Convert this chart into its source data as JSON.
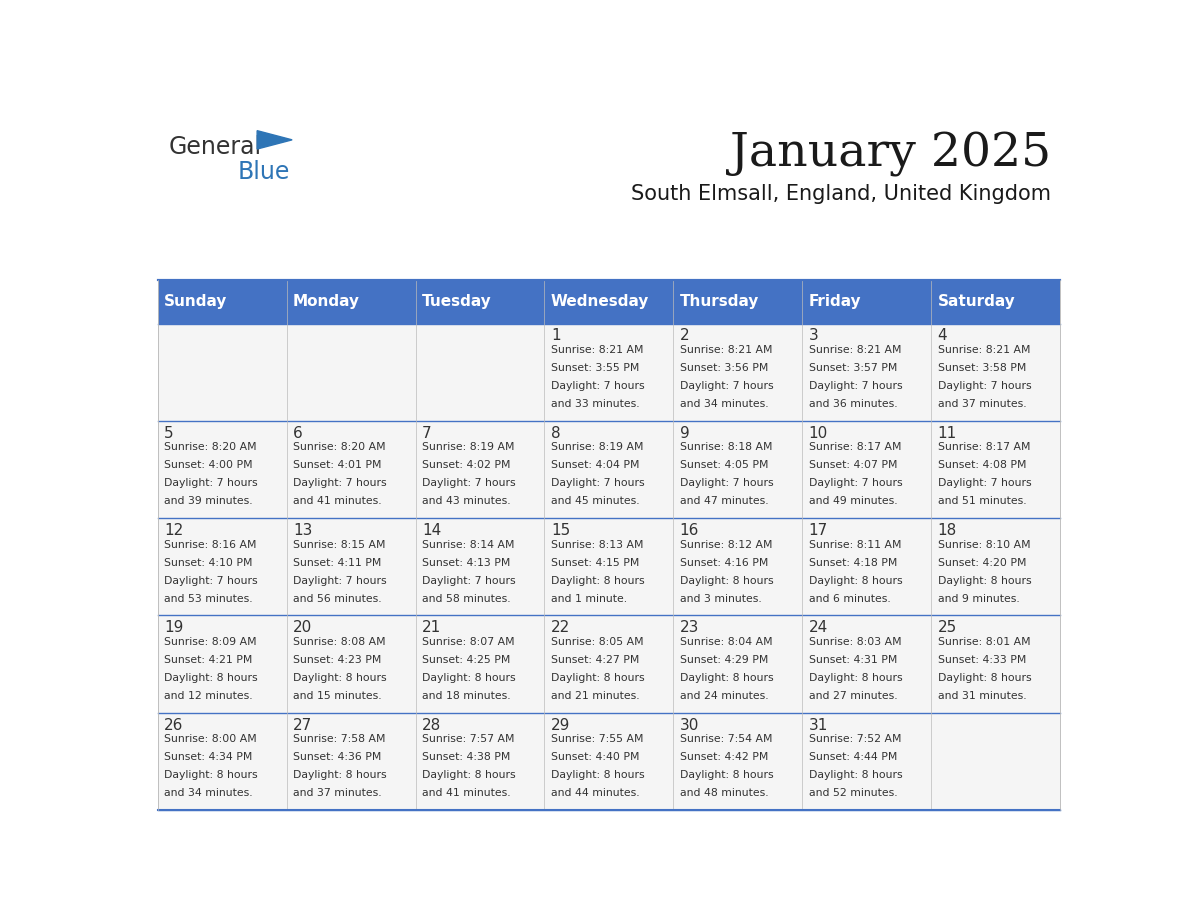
{
  "title": "January 2025",
  "subtitle": "South Elmsall, England, United Kingdom",
  "days_of_week": [
    "Sunday",
    "Monday",
    "Tuesday",
    "Wednesday",
    "Thursday",
    "Friday",
    "Saturday"
  ],
  "header_bg": "#4472C4",
  "header_text": "#FFFFFF",
  "cell_bg": "#F5F5F5",
  "text_color": "#333333",
  "border_color": "#4472C4",
  "logo_general_color": "#333333",
  "logo_blue_color": "#2E75B6",
  "weeks": [
    [
      {
        "day": null,
        "sunrise": null,
        "sunset": null,
        "daylight": null
      },
      {
        "day": null,
        "sunrise": null,
        "sunset": null,
        "daylight": null
      },
      {
        "day": null,
        "sunrise": null,
        "sunset": null,
        "daylight": null
      },
      {
        "day": 1,
        "sunrise": "8:21 AM",
        "sunset": "3:55 PM",
        "daylight": "7 hours\nand 33 minutes."
      },
      {
        "day": 2,
        "sunrise": "8:21 AM",
        "sunset": "3:56 PM",
        "daylight": "7 hours\nand 34 minutes."
      },
      {
        "day": 3,
        "sunrise": "8:21 AM",
        "sunset": "3:57 PM",
        "daylight": "7 hours\nand 36 minutes."
      },
      {
        "day": 4,
        "sunrise": "8:21 AM",
        "sunset": "3:58 PM",
        "daylight": "7 hours\nand 37 minutes."
      }
    ],
    [
      {
        "day": 5,
        "sunrise": "8:20 AM",
        "sunset": "4:00 PM",
        "daylight": "7 hours\nand 39 minutes."
      },
      {
        "day": 6,
        "sunrise": "8:20 AM",
        "sunset": "4:01 PM",
        "daylight": "7 hours\nand 41 minutes."
      },
      {
        "day": 7,
        "sunrise": "8:19 AM",
        "sunset": "4:02 PM",
        "daylight": "7 hours\nand 43 minutes."
      },
      {
        "day": 8,
        "sunrise": "8:19 AM",
        "sunset": "4:04 PM",
        "daylight": "7 hours\nand 45 minutes."
      },
      {
        "day": 9,
        "sunrise": "8:18 AM",
        "sunset": "4:05 PM",
        "daylight": "7 hours\nand 47 minutes."
      },
      {
        "day": 10,
        "sunrise": "8:17 AM",
        "sunset": "4:07 PM",
        "daylight": "7 hours\nand 49 minutes."
      },
      {
        "day": 11,
        "sunrise": "8:17 AM",
        "sunset": "4:08 PM",
        "daylight": "7 hours\nand 51 minutes."
      }
    ],
    [
      {
        "day": 12,
        "sunrise": "8:16 AM",
        "sunset": "4:10 PM",
        "daylight": "7 hours\nand 53 minutes."
      },
      {
        "day": 13,
        "sunrise": "8:15 AM",
        "sunset": "4:11 PM",
        "daylight": "7 hours\nand 56 minutes."
      },
      {
        "day": 14,
        "sunrise": "8:14 AM",
        "sunset": "4:13 PM",
        "daylight": "7 hours\nand 58 minutes."
      },
      {
        "day": 15,
        "sunrise": "8:13 AM",
        "sunset": "4:15 PM",
        "daylight": "8 hours\nand 1 minute."
      },
      {
        "day": 16,
        "sunrise": "8:12 AM",
        "sunset": "4:16 PM",
        "daylight": "8 hours\nand 3 minutes."
      },
      {
        "day": 17,
        "sunrise": "8:11 AM",
        "sunset": "4:18 PM",
        "daylight": "8 hours\nand 6 minutes."
      },
      {
        "day": 18,
        "sunrise": "8:10 AM",
        "sunset": "4:20 PM",
        "daylight": "8 hours\nand 9 minutes."
      }
    ],
    [
      {
        "day": 19,
        "sunrise": "8:09 AM",
        "sunset": "4:21 PM",
        "daylight": "8 hours\nand 12 minutes."
      },
      {
        "day": 20,
        "sunrise": "8:08 AM",
        "sunset": "4:23 PM",
        "daylight": "8 hours\nand 15 minutes."
      },
      {
        "day": 21,
        "sunrise": "8:07 AM",
        "sunset": "4:25 PM",
        "daylight": "8 hours\nand 18 minutes."
      },
      {
        "day": 22,
        "sunrise": "8:05 AM",
        "sunset": "4:27 PM",
        "daylight": "8 hours\nand 21 minutes."
      },
      {
        "day": 23,
        "sunrise": "8:04 AM",
        "sunset": "4:29 PM",
        "daylight": "8 hours\nand 24 minutes."
      },
      {
        "day": 24,
        "sunrise": "8:03 AM",
        "sunset": "4:31 PM",
        "daylight": "8 hours\nand 27 minutes."
      },
      {
        "day": 25,
        "sunrise": "8:01 AM",
        "sunset": "4:33 PM",
        "daylight": "8 hours\nand 31 minutes."
      }
    ],
    [
      {
        "day": 26,
        "sunrise": "8:00 AM",
        "sunset": "4:34 PM",
        "daylight": "8 hours\nand 34 minutes."
      },
      {
        "day": 27,
        "sunrise": "7:58 AM",
        "sunset": "4:36 PM",
        "daylight": "8 hours\nand 37 minutes."
      },
      {
        "day": 28,
        "sunrise": "7:57 AM",
        "sunset": "4:38 PM",
        "daylight": "8 hours\nand 41 minutes."
      },
      {
        "day": 29,
        "sunrise": "7:55 AM",
        "sunset": "4:40 PM",
        "daylight": "8 hours\nand 44 minutes."
      },
      {
        "day": 30,
        "sunrise": "7:54 AM",
        "sunset": "4:42 PM",
        "daylight": "8 hours\nand 48 minutes."
      },
      {
        "day": 31,
        "sunrise": "7:52 AM",
        "sunset": "4:44 PM",
        "daylight": "8 hours\nand 52 minutes."
      },
      {
        "day": null,
        "sunrise": null,
        "sunset": null,
        "daylight": null
      }
    ]
  ]
}
